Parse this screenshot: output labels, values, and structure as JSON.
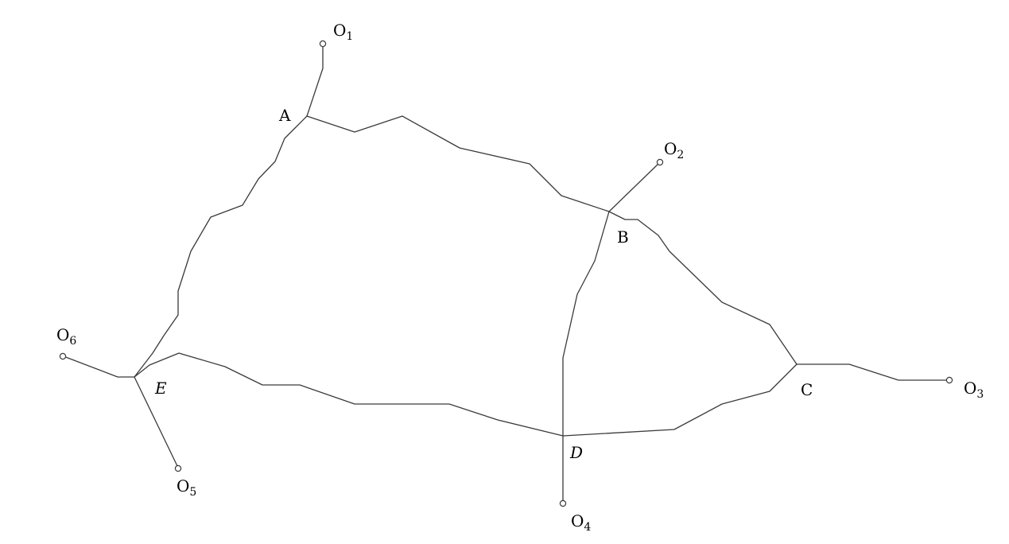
{
  "diagram": {
    "nodes": {
      "A": {
        "label": "A",
        "italic": false
      },
      "B": {
        "label": "B",
        "italic": false
      },
      "C": {
        "label": "C",
        "italic": false
      },
      "D": {
        "label": "D",
        "italic": true
      },
      "E": {
        "label": "E",
        "italic": true
      }
    },
    "terminals": {
      "O1": {
        "base": "O",
        "sub": "1"
      },
      "O2": {
        "base": "O",
        "sub": "2"
      },
      "O3": {
        "base": "O",
        "sub": "3"
      },
      "O4": {
        "base": "O",
        "sub": "4"
      },
      "O5": {
        "base": "O",
        "sub": "5"
      },
      "O6": {
        "base": "O",
        "sub": "6"
      }
    },
    "connections": [
      [
        "A",
        "B"
      ],
      [
        "A",
        "E"
      ],
      [
        "B",
        "C"
      ],
      [
        "B",
        "D"
      ],
      [
        "E",
        "D"
      ],
      [
        "D",
        "C"
      ],
      [
        "A",
        "O1"
      ],
      [
        "B",
        "O2"
      ],
      [
        "C",
        "O3"
      ],
      [
        "D",
        "O4"
      ],
      [
        "E",
        "O5"
      ],
      [
        "E",
        "O6"
      ]
    ],
    "line_color": "#3a3a3a"
  }
}
